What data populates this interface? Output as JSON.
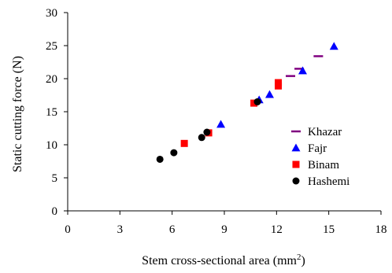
{
  "chart_data": {
    "type": "scatter",
    "title": "",
    "xlabel": "Stem cross-sectional area (mm",
    "xlabel_sup": "2",
    "xlabel_suffix": ")",
    "ylabel": "Static cutting force (N)",
    "xlim": [
      0,
      18
    ],
    "ylim": [
      0,
      30
    ],
    "xticks": [
      0,
      3,
      6,
      9,
      12,
      15,
      18
    ],
    "yticks": [
      0,
      5,
      10,
      15,
      20,
      25,
      30
    ],
    "grid": false,
    "legend_position": "right-center",
    "series": [
      {
        "name": "Khazar",
        "marker": "dash",
        "color": "#800080",
        "points": [
          [
            12.8,
            20.4
          ],
          [
            13.3,
            21.5
          ],
          [
            14.4,
            23.4
          ]
        ]
      },
      {
        "name": "Fajr",
        "marker": "triangle",
        "color": "#0000ff",
        "points": [
          [
            8.8,
            13.1
          ],
          [
            11.0,
            16.8
          ],
          [
            11.6,
            17.6
          ],
          [
            13.5,
            21.2
          ],
          [
            15.3,
            24.9
          ]
        ]
      },
      {
        "name": "Binam",
        "marker": "square",
        "color": "#ff0000",
        "points": [
          [
            6.7,
            10.2
          ],
          [
            8.1,
            11.8
          ],
          [
            10.7,
            16.3
          ],
          [
            12.1,
            18.9
          ],
          [
            12.1,
            19.4
          ]
        ]
      },
      {
        "name": "Hashemi",
        "marker": "circle",
        "color": "#000000",
        "points": [
          [
            5.3,
            7.8
          ],
          [
            6.1,
            8.8
          ],
          [
            7.7,
            11.1
          ],
          [
            8.0,
            11.9
          ],
          [
            10.9,
            16.5
          ]
        ]
      }
    ]
  }
}
